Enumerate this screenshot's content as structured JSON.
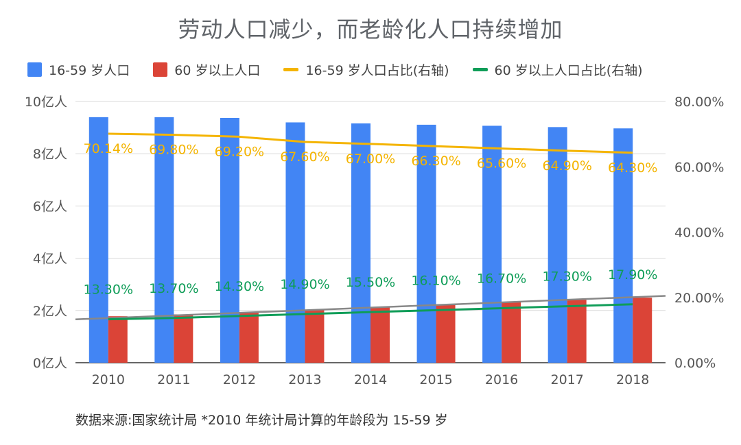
{
  "chart_data": {
    "type": "bar",
    "title": "劳动人口减少，而老龄化人口持续增加",
    "categories": [
      "2010",
      "2011",
      "2012",
      "2013",
      "2014",
      "2015",
      "2016",
      "2017",
      "2018"
    ],
    "series": [
      {
        "name": "16-59 岁人口",
        "kind": "bar",
        "axis": "left",
        "color": "#4285f4",
        "values": [
          9.4,
          9.4,
          9.37,
          9.2,
          9.16,
          9.11,
          9.07,
          9.02,
          8.97
        ]
      },
      {
        "name": "60 岁以上人口",
        "kind": "bar",
        "axis": "left",
        "color": "#db4437",
        "values": [
          1.78,
          1.85,
          1.94,
          2.02,
          2.12,
          2.22,
          2.31,
          2.41,
          2.49
        ]
      },
      {
        "name": "16-59 岁人口占比(右轴)",
        "kind": "line",
        "axis": "right",
        "color": "#f4b400",
        "values": [
          70.14,
          69.8,
          69.2,
          67.6,
          67.0,
          66.3,
          65.6,
          64.9,
          64.3
        ],
        "labels": [
          "70.14%",
          "69.80%",
          "69.20%",
          "67.60%",
          "67.00%",
          "66.30%",
          "65.60%",
          "64.90%",
          "64.30%"
        ]
      },
      {
        "name": "60 岁以上人口占比(右轴)",
        "kind": "line",
        "axis": "right",
        "color": "#0f9d58",
        "values": [
          13.3,
          13.7,
          14.3,
          14.9,
          15.5,
          16.1,
          16.7,
          17.3,
          17.9
        ],
        "labels": [
          "13.30%",
          "13.70%",
          "14.30%",
          "14.90%",
          "15.50%",
          "16.10%",
          "16.70%",
          "17.30%",
          "17.90%"
        ]
      }
    ],
    "left_axis": {
      "ylim": [
        0,
        10
      ],
      "ticks": [
        0,
        2,
        4,
        6,
        8,
        10
      ],
      "tick_labels": [
        "0亿人",
        "2亿人",
        "4亿人",
        "6亿人",
        "8亿人",
        "10亿人"
      ]
    },
    "right_axis": {
      "ylim": [
        0,
        80
      ],
      "ticks": [
        0,
        20,
        40,
        60,
        80
      ],
      "tick_labels": [
        "0.00%",
        "20.00%",
        "40.00%",
        "60.00%",
        "80.00%"
      ]
    },
    "trendline": {
      "color": "#888888",
      "start_value_left": 1.66,
      "end_value_left": 2.56
    },
    "legend_position": "top",
    "grid": true
  },
  "footnote": "数据来源:国家统计局  *2010 年统计局计算的年龄段为 15-59 岁"
}
